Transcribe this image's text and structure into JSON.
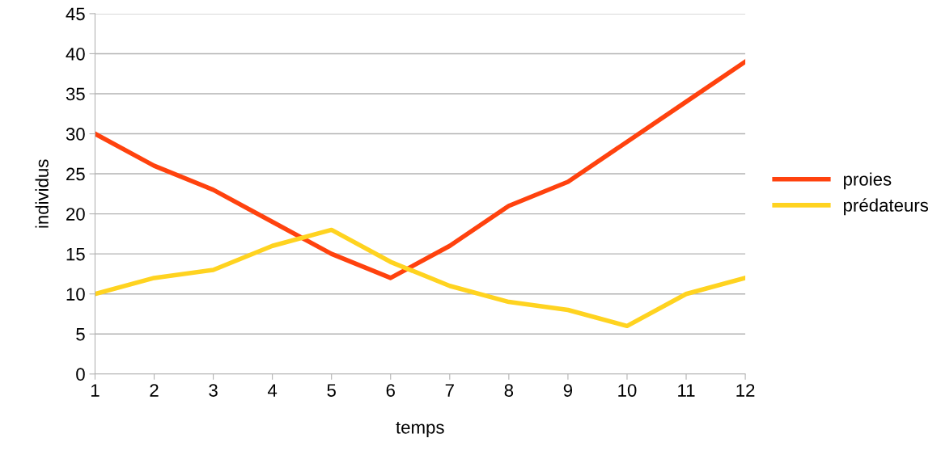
{
  "chart_data": {
    "type": "line",
    "xlabel": "temps",
    "ylabel": "individus",
    "categories": [
      "1",
      "2",
      "3",
      "4",
      "5",
      "6",
      "7",
      "8",
      "9",
      "10",
      "11",
      "12"
    ],
    "series": [
      {
        "name": "proies",
        "color": "#ff420e",
        "values": [
          30,
          26,
          23,
          19,
          15,
          12,
          16,
          21,
          24,
          29,
          34,
          39
        ]
      },
      {
        "name": "prédateurs",
        "color": "#ffd320",
        "values": [
          10,
          12,
          13,
          16,
          18,
          14,
          11,
          9,
          8,
          6,
          10,
          12
        ]
      }
    ],
    "ylim": [
      0,
      45
    ],
    "yticks": [
      0,
      5,
      10,
      15,
      20,
      25,
      30,
      35,
      40,
      45
    ],
    "grid": "y",
    "legend": "right",
    "marker": "none",
    "line_style": "solid"
  }
}
